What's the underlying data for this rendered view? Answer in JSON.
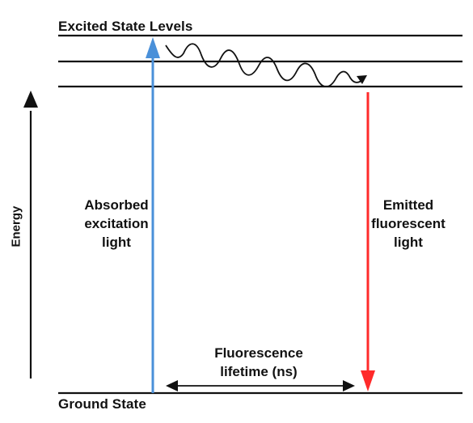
{
  "diagram": {
    "title_top": "Excited State Levels",
    "title_bottom": "Ground State",
    "energy_label": "Energy",
    "absorbed": {
      "line1": "Absorbed",
      "line2": "excitation",
      "line3": "light"
    },
    "emitted": {
      "line1": "Emitted",
      "line2": "fluorescent",
      "line3": "light"
    },
    "lifetime": {
      "line1": "Fluorescence",
      "line2": "lifetime (ns)"
    },
    "colors": {
      "absorbed_arrow": "#4a90d9",
      "emitted_arrow": "#ff2a2a",
      "ink": "#111111"
    }
  }
}
